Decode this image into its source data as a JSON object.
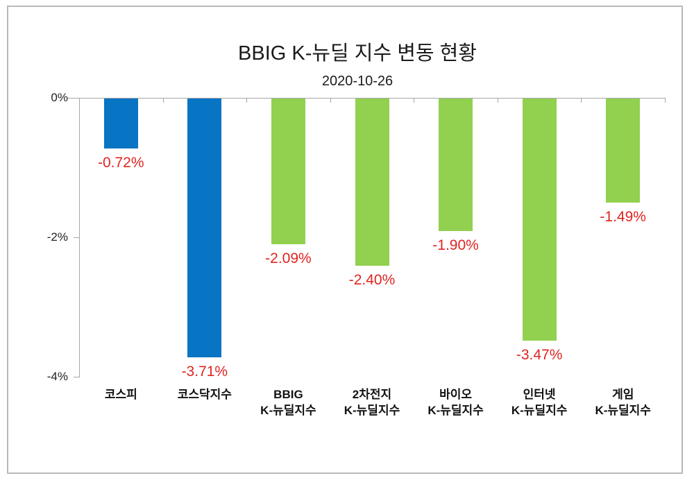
{
  "chart_data": {
    "type": "bar",
    "title": "BBIG K-뉴딜 지수 변동 현황",
    "subtitle": "2020-10-26",
    "categories": [
      "코스피",
      "코스닥지수",
      "BBIG K-뉴딜지수",
      "2차전지 K-뉴딜지수",
      "바이오 K-뉴딜지수",
      "인터넷 K-뉴딜지수",
      "게임 K-뉴딜지수"
    ],
    "category_lines": [
      [
        "코스피"
      ],
      [
        "코스닥지수"
      ],
      [
        "BBIG",
        "K-뉴딜지수"
      ],
      [
        "2차전지",
        "K-뉴딜지수"
      ],
      [
        "바이오",
        "K-뉴딜지수"
      ],
      [
        "인터넷",
        "K-뉴딜지수"
      ],
      [
        "게임",
        "K-뉴딜지수"
      ]
    ],
    "slugs": [
      "kospi",
      "kosdaq",
      "bbig-kdeal",
      "battery-kdeal",
      "bio-kdeal",
      "internet-kdeal",
      "game-kdeal"
    ],
    "values": [
      -0.72,
      -3.71,
      -2.09,
      -2.4,
      -1.9,
      -3.47,
      -1.49
    ],
    "value_labels": [
      "-0.72%",
      "-3.71%",
      "-2.09%",
      "-2.40%",
      "-1.90%",
      "-3.47%",
      "-1.49%"
    ],
    "bar_colors": [
      "#0874c4",
      "#0874c4",
      "#92d050",
      "#92d050",
      "#92d050",
      "#92d050",
      "#92d050"
    ],
    "ylim": [
      -4,
      0
    ],
    "yticks": [
      {
        "label": "0%",
        "value": 0
      },
      {
        "label": "-2%",
        "value": -2
      },
      {
        "label": "-4%",
        "value": -4
      }
    ],
    "grid": false,
    "legend": false,
    "xlabel": "",
    "ylabel": "",
    "colors": {
      "blue_bar": "#0874c4",
      "green_bar": "#92d050",
      "value_label_red": "#e02420",
      "axis_gray": "#a6a6a6",
      "frame_gray": "#b9b9b9"
    }
  }
}
